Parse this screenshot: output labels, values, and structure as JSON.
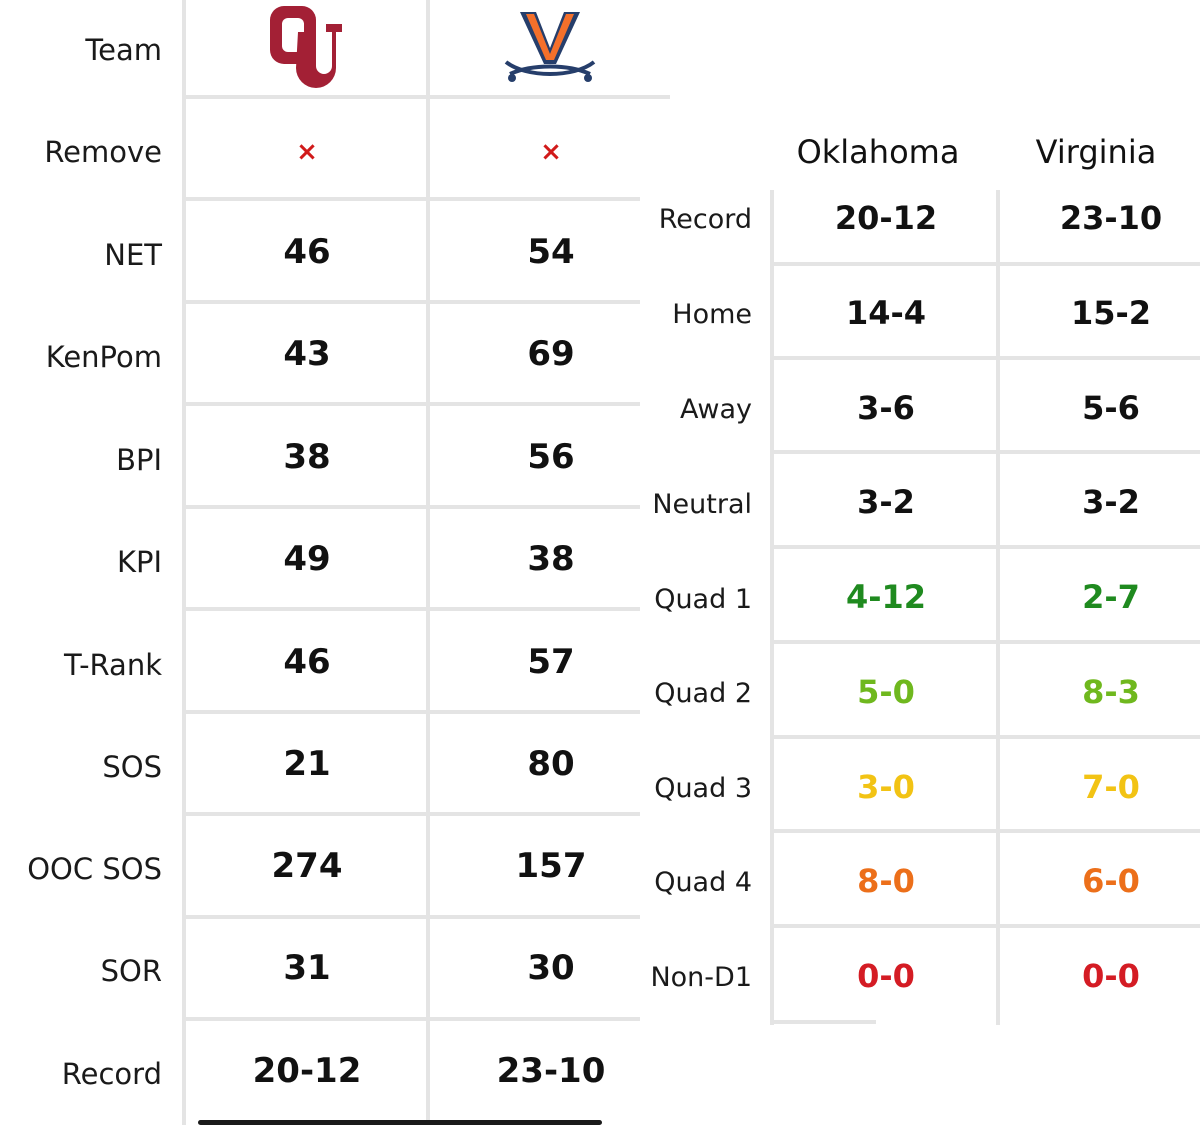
{
  "left_table": {
    "header_label": "Team",
    "teams": [
      {
        "logo": "oklahoma-ou-logo",
        "logo_text": "OU",
        "color": "#a32035"
      },
      {
        "logo": "virginia-v-logo",
        "logo_text": "V",
        "color": "#f4702b",
        "secondary_color": "#263e6b"
      }
    ],
    "remove": {
      "label": "Remove",
      "symbol": "×",
      "color": "#d11a1a"
    },
    "rows": [
      {
        "label": "NET",
        "values": [
          "46",
          "54"
        ]
      },
      {
        "label": "KenPom",
        "values": [
          "43",
          "69"
        ]
      },
      {
        "label": "BPI",
        "values": [
          "38",
          "56"
        ]
      },
      {
        "label": "KPI",
        "values": [
          "49",
          "38"
        ]
      },
      {
        "label": "T-Rank",
        "values": [
          "46",
          "57"
        ]
      },
      {
        "label": "SOS",
        "values": [
          "21",
          "80"
        ]
      },
      {
        "label": "OOC SOS",
        "values": [
          "274",
          "157"
        ]
      },
      {
        "label": "SOR",
        "values": [
          "31",
          "30"
        ]
      },
      {
        "label": "Record",
        "values": [
          "20-12",
          "23-10"
        ]
      }
    ]
  },
  "right_table": {
    "headers": [
      "Oklahoma",
      "Virginia"
    ],
    "rows": [
      {
        "label": "Record",
        "values": [
          "20-12",
          "23-10"
        ],
        "color": "#111111"
      },
      {
        "label": "Home",
        "values": [
          "14-4",
          "15-2"
        ],
        "color": "#111111"
      },
      {
        "label": "Away",
        "values": [
          "3-6",
          "5-6"
        ],
        "color": "#111111"
      },
      {
        "label": "Neutral",
        "values": [
          "3-2",
          "3-2"
        ],
        "color": "#111111"
      },
      {
        "label": "Quad 1",
        "values": [
          "4-12",
          "2-7"
        ],
        "color": "#1f8a1f"
      },
      {
        "label": "Quad 2",
        "values": [
          "5-0",
          "8-3"
        ],
        "color": "#6fb81e"
      },
      {
        "label": "Quad 3",
        "values": [
          "3-0",
          "7-0"
        ],
        "color": "#f2c314"
      },
      {
        "label": "Quad 4",
        "values": [
          "8-0",
          "6-0"
        ],
        "color": "#ec6f1a"
      },
      {
        "label": "Non-D1",
        "values": [
          "0-0",
          "0-0"
        ],
        "color": "#d41c24"
      }
    ]
  }
}
